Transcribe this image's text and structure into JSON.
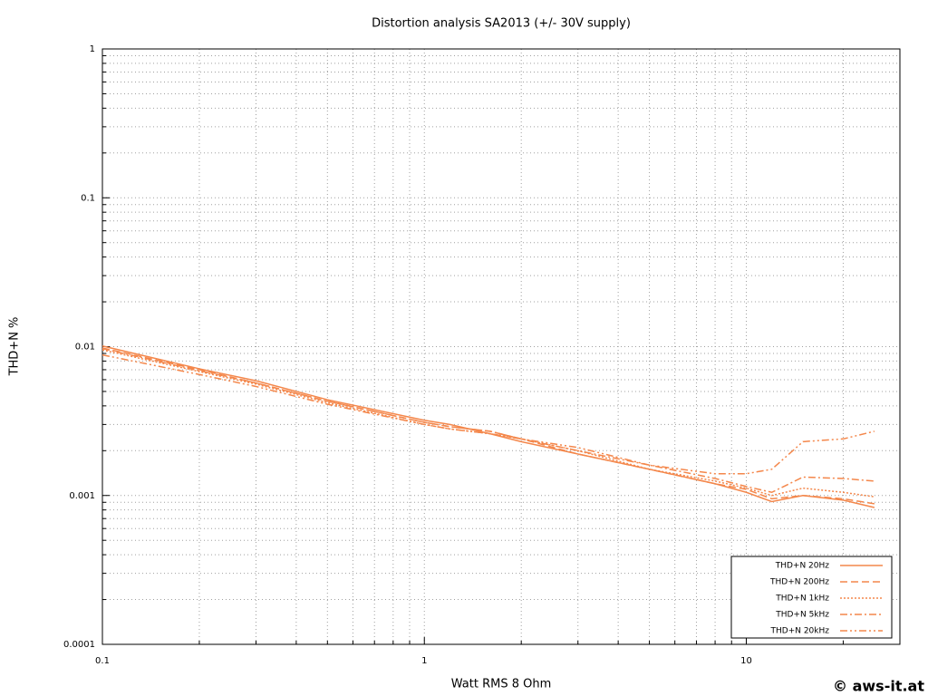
{
  "chart_data": {
    "type": "line",
    "title": "Distortion analysis SA2013 (+/- 30V supply)",
    "xlabel": "Watt RMS 8 Ohm",
    "ylabel": "THD+N %",
    "watermark": "© aws-it.at",
    "log_x": true,
    "log_y": true,
    "grid": true,
    "legend": "lower right",
    "xlim": [
      0.1,
      30
    ],
    "ylim": [
      0.0001,
      1
    ],
    "xticks": [
      0.1,
      1,
      10
    ],
    "yticks": [
      0.0001,
      0.001,
      0.01,
      0.1,
      1
    ],
    "xminorticks": [
      0.2,
      0.3,
      0.4,
      0.5,
      0.6,
      0.7,
      0.8,
      0.9,
      2,
      3,
      4,
      5,
      6,
      7,
      8,
      9,
      20,
      30
    ],
    "yminorticks": [
      0.0002,
      0.0003,
      0.0004,
      0.0005,
      0.0006,
      0.0007,
      0.0008,
      0.0009,
      0.002,
      0.003,
      0.004,
      0.005,
      0.006,
      0.007,
      0.008,
      0.009,
      0.02,
      0.03,
      0.04,
      0.05,
      0.06,
      0.07,
      0.08,
      0.09,
      0.2,
      0.3,
      0.4,
      0.5,
      0.6,
      0.7,
      0.8,
      0.9
    ],
    "x": [
      0.1,
      0.2,
      0.3,
      0.5,
      1,
      1.2,
      1.6,
      2,
      3,
      5,
      8,
      10,
      12,
      15,
      20,
      25
    ],
    "series": [
      {
        "name": "THD+N 20Hz",
        "color": "#f4874b",
        "linestyle": "solid",
        "values": [
          0.0101,
          0.0071,
          0.0059,
          0.0044,
          0.0032,
          0.003,
          0.0026,
          0.0023,
          0.0019,
          0.0015,
          0.0012,
          0.00105,
          0.00091,
          0.001,
          0.00093,
          0.00083
        ]
      },
      {
        "name": "THD+N 200Hz",
        "color": "#f4874b",
        "linestyle": "dashed",
        "values": [
          0.0098,
          0.007,
          0.0057,
          0.0043,
          0.0031,
          0.0029,
          0.0027,
          0.0024,
          0.0019,
          0.0015,
          0.0012,
          0.0011,
          0.00095,
          0.001,
          0.00095,
          0.00088
        ]
      },
      {
        "name": "THD+N 1kHz",
        "color": "#f4874b",
        "linestyle": "dotted",
        "values": [
          0.0095,
          0.0068,
          0.0056,
          0.0042,
          0.003,
          0.0028,
          0.0026,
          0.0024,
          0.002,
          0.0015,
          0.00125,
          0.00112,
          0.001,
          0.00112,
          0.00105,
          0.00098
        ]
      },
      {
        "name": "THD+N 5kHz",
        "color": "#f4874b",
        "linestyle": "dashdot",
        "values": [
          0.0097,
          0.0069,
          0.0057,
          0.0043,
          0.0031,
          0.0029,
          0.0027,
          0.0024,
          0.002,
          0.0016,
          0.0013,
          0.00115,
          0.00105,
          0.00133,
          0.0013,
          0.00125
        ]
      },
      {
        "name": "THD+N 20kHz",
        "color": "#f4874b",
        "linestyle": "dashdotdot",
        "values": [
          0.0088,
          0.0065,
          0.0054,
          0.0041,
          0.003,
          0.0028,
          0.0026,
          0.0024,
          0.0021,
          0.0016,
          0.0014,
          0.0014,
          0.0015,
          0.0023,
          0.0024,
          0.0027
        ]
      }
    ]
  }
}
